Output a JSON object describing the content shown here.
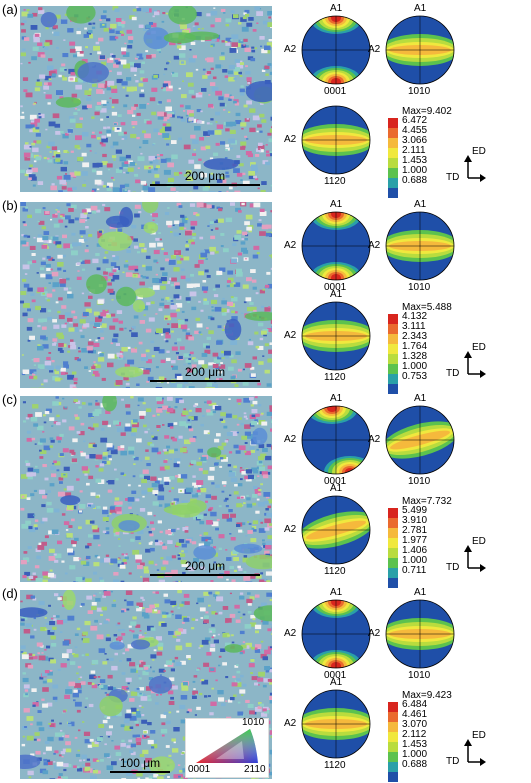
{
  "colors": {
    "contour": [
      "#1f4fa8",
      "#2aa0a8",
      "#5cc24e",
      "#b9dc3e",
      "#f0e83e",
      "#f5b93c",
      "#ea6a2e",
      "#d8251e"
    ]
  },
  "panels": [
    {
      "label": "(a)",
      "scale": "200 μm",
      "pf": [
        {
          "id": "0001",
          "top_label": "A1",
          "left_label": "A2",
          "bottom_label": "0001",
          "pattern": "poles"
        },
        {
          "id": "1010",
          "top_label": "A1",
          "left_label": "A2",
          "bottom_label": "1010",
          "pattern": "band"
        },
        {
          "id": "1120",
          "top_label": "",
          "left_label": "A2",
          "bottom_label": "1120",
          "pattern": "band"
        }
      ],
      "legend": {
        "max": "Max=9.402",
        "levels": [
          "6.472",
          "4.455",
          "3.066",
          "2.111",
          "1.453",
          "1.000",
          "0.688"
        ]
      }
    },
    {
      "label": "(b)",
      "scale": "200 μm",
      "pf": [
        {
          "id": "0001",
          "top_label": "A1",
          "left_label": "A2",
          "bottom_label": "0001",
          "pattern": "poles"
        },
        {
          "id": "1010",
          "top_label": "A1",
          "left_label": "A2",
          "bottom_label": "1010",
          "pattern": "band"
        },
        {
          "id": "1120",
          "top_label": "A1",
          "left_label": "A2",
          "bottom_label": "1120",
          "pattern": "band"
        }
      ],
      "legend": {
        "max": "Max=5.488",
        "levels": [
          "4.132",
          "3.111",
          "2.343",
          "1.764",
          "1.328",
          "1.000",
          "0.753"
        ]
      }
    },
    {
      "label": "(c)",
      "scale": "200 μm",
      "pf": [
        {
          "id": "0001",
          "top_label": "A1",
          "left_label": "A2",
          "bottom_label": "0001",
          "pattern": "poles-tilt"
        },
        {
          "id": "1010",
          "top_label": "A1",
          "left_label": "A2",
          "bottom_label": "1010",
          "pattern": "band-tilt"
        },
        {
          "id": "1120",
          "top_label": "A1",
          "left_label": "A2",
          "bottom_label": "1120",
          "pattern": "band-tilt"
        }
      ],
      "legend": {
        "max": "Max=7.732",
        "levels": [
          "5.499",
          "3.910",
          "2.781",
          "1.977",
          "1.406",
          "1.000",
          "0.711"
        ]
      }
    },
    {
      "label": "(d)",
      "scale": "100 μm",
      "pf": [
        {
          "id": "0001",
          "top_label": "A1",
          "left_label": "A2",
          "bottom_label": "0001",
          "pattern": "poles"
        },
        {
          "id": "1010",
          "top_label": "A1",
          "left_label": "A2",
          "bottom_label": "1010",
          "pattern": "band"
        },
        {
          "id": "1120",
          "top_label": "A1",
          "left_label": "A2",
          "bottom_label": "1120",
          "pattern": "band"
        }
      ],
      "legend": {
        "max": "Max=9.423",
        "levels": [
          "6.484",
          "4.461",
          "3.070",
          "2.112",
          "1.453",
          "1.000",
          "0.688"
        ]
      }
    }
  ],
  "axes": {
    "ed": "ED",
    "td": "TD"
  },
  "ipf_key": {
    "left": "0001",
    "top": "1010",
    "right": "2110"
  }
}
